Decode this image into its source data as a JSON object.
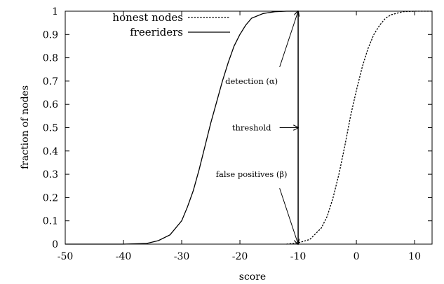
{
  "chart_data": {
    "type": "line",
    "title": "",
    "xlabel": "score",
    "ylabel": "fraction of nodes",
    "xlim": [
      -50,
      13
    ],
    "ylim": [
      0,
      1
    ],
    "xticks": [
      -50,
      -40,
      -30,
      -20,
      -10,
      0,
      10
    ],
    "yticks": [
      0,
      0.1,
      0.2,
      0.3,
      0.4,
      0.5,
      0.6,
      0.7,
      0.8,
      0.9,
      1
    ],
    "grid": false,
    "legend_position": "top-left",
    "series": [
      {
        "name": "honest nodes",
        "style": "dashed",
        "x": [
          -12,
          -10,
          -8,
          -6,
          -5,
          -4,
          -3,
          -2,
          -1,
          0,
          1,
          2,
          3,
          4,
          5,
          6,
          8,
          10,
          13
        ],
        "y": [
          0,
          0.005,
          0.02,
          0.07,
          0.12,
          0.2,
          0.3,
          0.42,
          0.55,
          0.66,
          0.76,
          0.84,
          0.9,
          0.94,
          0.97,
          0.985,
          0.998,
          1,
          1
        ]
      },
      {
        "name": "freeriders",
        "style": "solid",
        "x": [
          -50,
          -40,
          -36,
          -34,
          -32,
          -30,
          -29,
          -28,
          -27,
          -26,
          -25,
          -24,
          -23,
          -22,
          -21,
          -20,
          -19,
          -18,
          -16,
          -14,
          -12,
          -10
        ],
        "y": [
          0,
          0,
          0.003,
          0.015,
          0.04,
          0.1,
          0.16,
          0.23,
          0.32,
          0.42,
          0.52,
          0.61,
          0.7,
          0.78,
          0.85,
          0.9,
          0.94,
          0.97,
          0.99,
          0.998,
          1,
          1
        ]
      }
    ],
    "threshold_x": -10,
    "annotations": [
      {
        "id": "detection",
        "text": "detection (α)",
        "x": -18,
        "y": 0.7,
        "arrow_to": [
          -10,
          1
        ]
      },
      {
        "id": "threshold",
        "text": "threshold",
        "x": -18,
        "y": 0.5,
        "arrow_to": [
          -10,
          0.5
        ]
      },
      {
        "id": "false_positives",
        "text": "false positives (β)",
        "x": -18,
        "y": 0.3,
        "arrow_to": [
          -10,
          0
        ]
      }
    ]
  }
}
